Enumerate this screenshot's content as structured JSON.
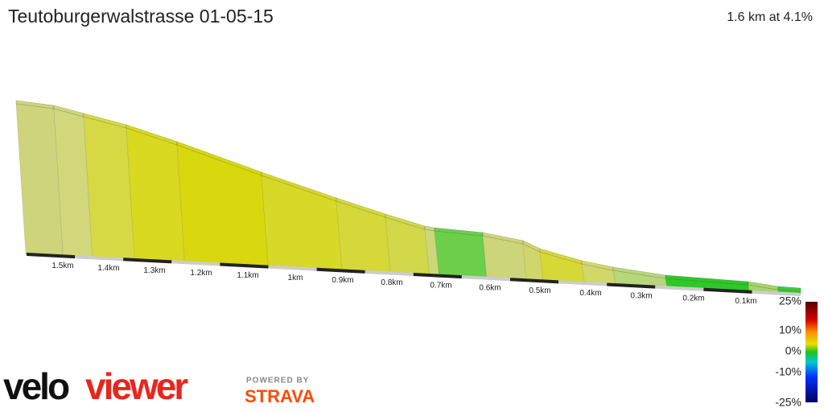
{
  "header": {
    "title": "Teutoburgerwalstrasse 01-05-15",
    "summary": "1.6 km at 4.1%"
  },
  "distance_labels": [
    "1.5km",
    "1.4km",
    "1.3km",
    "1.2km",
    "1.1km",
    "1km",
    "0.9km",
    "0.8km",
    "0.7km",
    "0.6km",
    "0.5km",
    "0.4km",
    "0.3km",
    "0.2km",
    "0.1km"
  ],
  "gradient_scale": [
    "25%",
    "10%",
    "0%",
    "-10%",
    "-25%"
  ],
  "brand": {
    "velo": "velo",
    "viewer": "viewer",
    "powered_by": "POWERED BY",
    "strava": "STRAVA"
  }
}
